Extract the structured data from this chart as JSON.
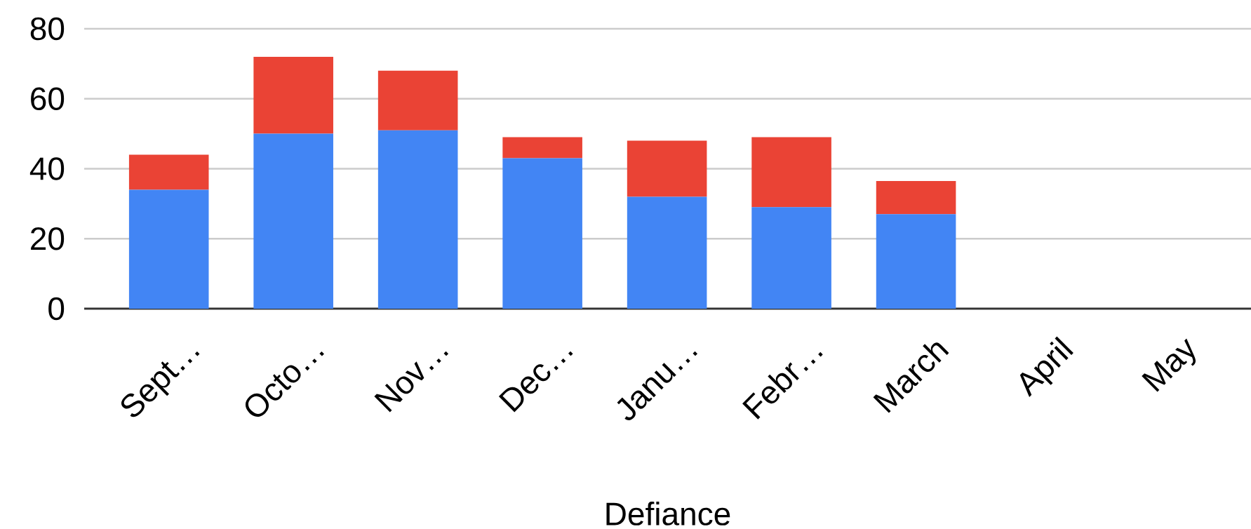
{
  "chart_data": {
    "type": "bar",
    "stacked": true,
    "xlabel": "Defiance",
    "categories": [
      "Sept…",
      "Octo…",
      "Nov…",
      "Dec…",
      "Janu…",
      "Febr…",
      "March",
      "April",
      "May"
    ],
    "series": [
      {
        "color": "#4285f4",
        "values": [
          34,
          50,
          51,
          43,
          32,
          29,
          27,
          null,
          null
        ]
      },
      {
        "color": "#ea4335",
        "values": [
          10,
          22,
          17,
          6,
          16,
          20,
          9.5,
          null,
          null
        ]
      }
    ],
    "ylim": [
      0,
      80
    ],
    "yticks": [
      0,
      20,
      40,
      60,
      80
    ],
    "grid": "y"
  }
}
